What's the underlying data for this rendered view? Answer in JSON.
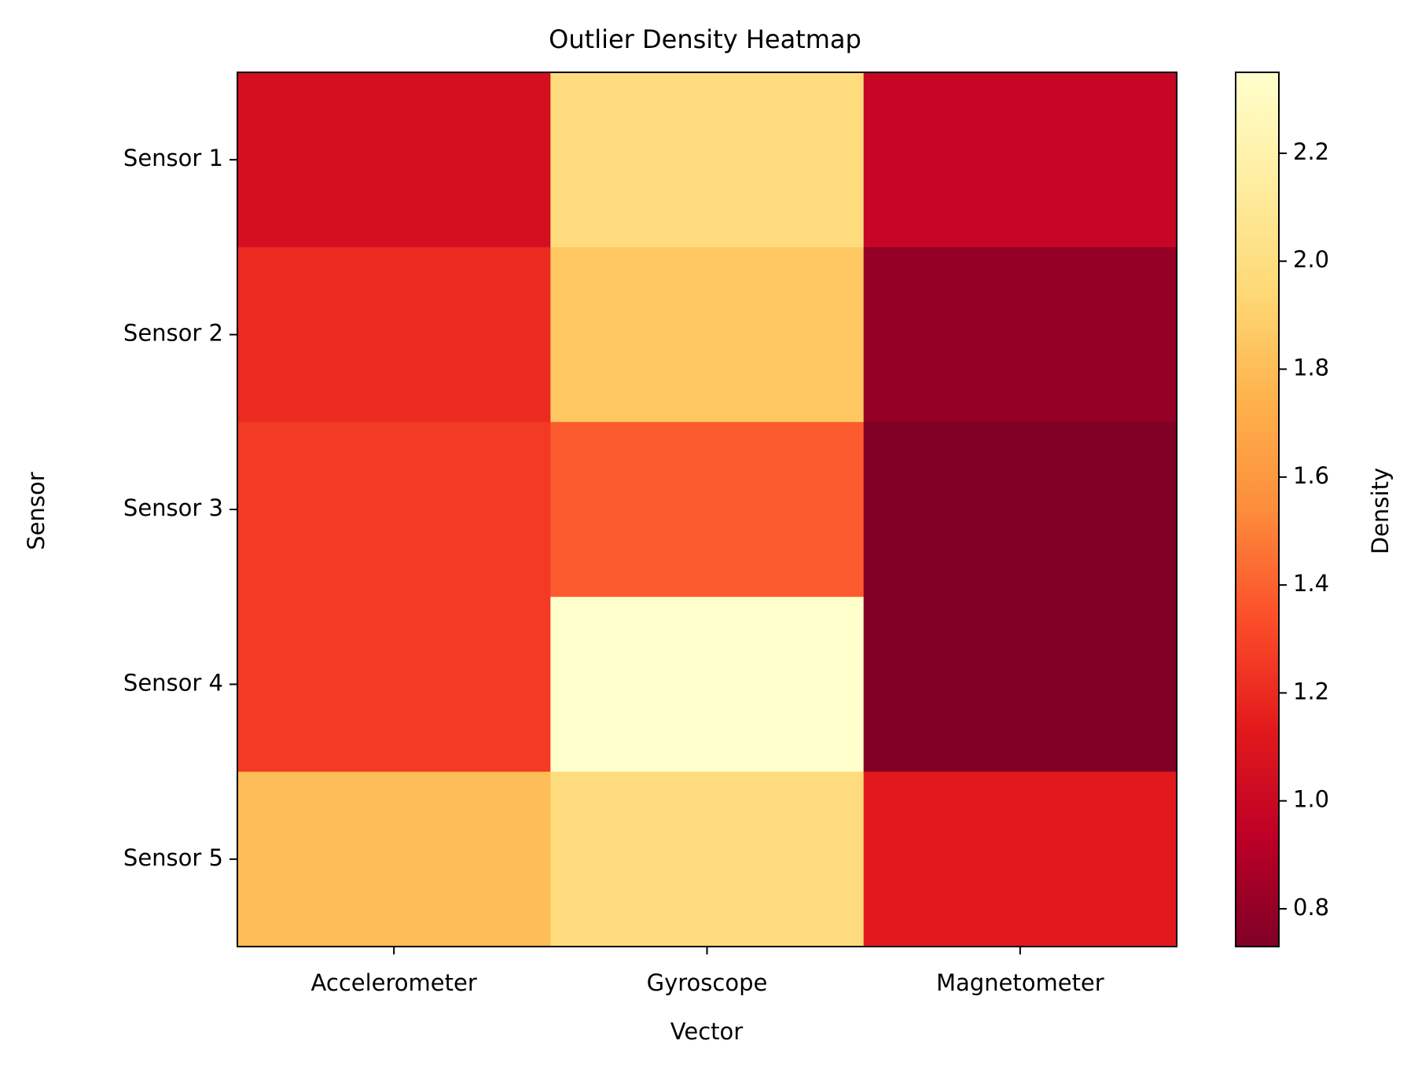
{
  "chart_data": {
    "type": "heatmap",
    "title": "Outlier Density Heatmap",
    "xlabel": "Vector",
    "ylabel": "Sensor",
    "x_categories": [
      "Accelerometer",
      "Gyroscope",
      "Magnetometer"
    ],
    "y_categories": [
      "Sensor 1",
      "Sensor 2",
      "Sensor 3",
      "Sensor 4",
      "Sensor 5"
    ],
    "values": [
      [
        1.05,
        1.98,
        0.98
      ],
      [
        1.2,
        1.85,
        0.8
      ],
      [
        1.26,
        1.38,
        0.73
      ],
      [
        1.26,
        2.35,
        0.73
      ],
      [
        1.8,
        1.98,
        1.13
      ]
    ],
    "colorbar": {
      "label": "Density",
      "range": [
        0.73,
        2.35
      ],
      "ticks": [
        0.8,
        1.0,
        1.2,
        1.4,
        1.6,
        1.8,
        2.0,
        2.2
      ],
      "tick_labels": [
        "0.8",
        "1.0",
        "1.2",
        "1.4",
        "1.6",
        "1.8",
        "2.0",
        "2.2"
      ],
      "colormap": "YlOrRd_r",
      "colormap_stops": [
        "#800026",
        "#bd0026",
        "#e31a1c",
        "#fc4e2a",
        "#fd8d3c",
        "#feb24c",
        "#fed976",
        "#ffeda0",
        "#ffffcc"
      ]
    },
    "grid": false
  }
}
